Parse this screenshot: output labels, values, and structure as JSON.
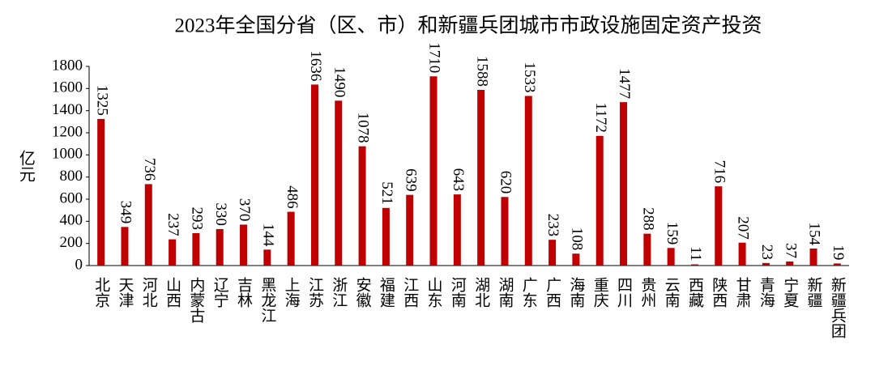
{
  "chart_data": {
    "type": "bar",
    "title": "2023年全国分省（区、市）和新疆兵团城市市政设施固定资产投资",
    "y_label": "亿元",
    "categories": [
      "北京",
      "天津",
      "河北",
      "山西",
      "内蒙古",
      "辽宁",
      "吉林",
      "黑龙江",
      "上海",
      "江苏",
      "浙江",
      "安徽",
      "福建",
      "江西",
      "山东",
      "河南",
      "湖北",
      "湖南",
      "广东",
      "广西",
      "海南",
      "重庆",
      "四川",
      "贵州",
      "云南",
      "西藏",
      "陕西",
      "甘肃",
      "青海",
      "宁夏",
      "新疆",
      "新疆兵团"
    ],
    "values": [
      1325,
      349,
      736,
      237,
      293,
      330,
      370,
      144,
      486,
      1636,
      1490,
      1078,
      521,
      639,
      1710,
      643,
      1588,
      620,
      1533,
      233,
      108,
      1172,
      1477,
      288,
      159,
      11,
      716,
      207,
      23,
      37,
      154,
      19
    ],
    "color": "#c00000",
    "ylim": [
      0,
      1800
    ],
    "yticks": [
      0,
      200,
      400,
      600,
      800,
      1000,
      1200,
      1400,
      1600,
      1800
    ],
    "grid": false
  }
}
